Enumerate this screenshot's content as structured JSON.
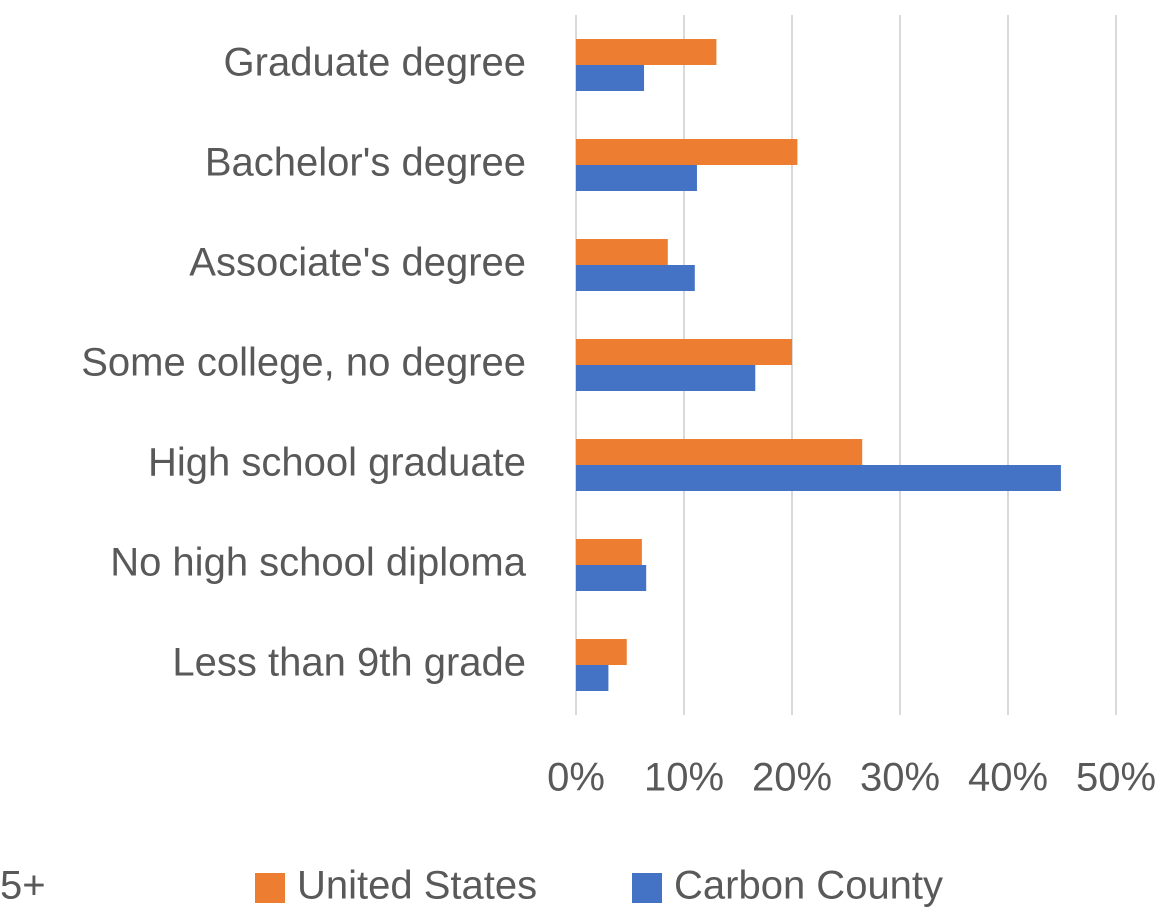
{
  "chart_data": {
    "type": "barh",
    "categories": [
      "Graduate degree",
      "Bachelor's degree",
      "Associate's degree",
      "Some college, no degree",
      "High school graduate",
      "No high school diploma",
      "Less than 9th grade"
    ],
    "series": [
      {
        "name": "United States",
        "color": "#ED7D31",
        "values": [
          13.0,
          20.5,
          8.5,
          20.0,
          26.5,
          6.1,
          4.7
        ]
      },
      {
        "name": "Carbon County",
        "color": "#4472C4",
        "values": [
          6.3,
          11.2,
          11.0,
          16.6,
          44.9,
          6.5,
          3.0
        ]
      }
    ],
    "xlim": [
      0,
      50
    ],
    "xticks": [
      {
        "value": 0,
        "label": "0%"
      },
      {
        "value": 10,
        "label": "10%"
      },
      {
        "value": 20,
        "label": "20%"
      },
      {
        "value": 30,
        "label": "30%"
      },
      {
        "value": 40,
        "label": "40%"
      },
      {
        "value": 50,
        "label": "50%"
      }
    ],
    "grid": true,
    "footnote": "5+"
  }
}
